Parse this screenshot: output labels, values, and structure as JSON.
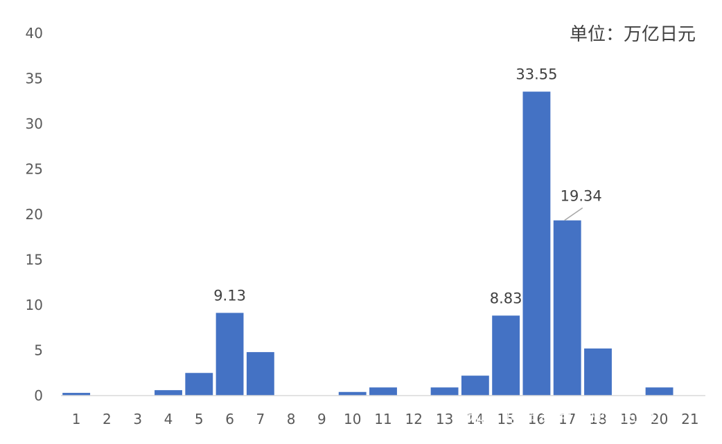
{
  "chart_data": {
    "type": "bar",
    "unit_label": "单位：万亿日元",
    "categories": [
      "1",
      "2",
      "3",
      "4",
      "5",
      "6",
      "7",
      "8",
      "9",
      "10",
      "11",
      "12",
      "13",
      "14",
      "15",
      "16",
      "17",
      "18",
      "19",
      "20",
      "21"
    ],
    "values": [
      0.3,
      0,
      0,
      0.6,
      2.5,
      9.13,
      4.8,
      0,
      0,
      0.4,
      0.9,
      0,
      0.9,
      2.2,
      8.83,
      33.55,
      19.34,
      5.2,
      0,
      0.9,
      0
    ],
    "data_labels": [
      {
        "index": 5,
        "text": "9.13"
      },
      {
        "index": 14,
        "text": "8.83"
      },
      {
        "index": 15,
        "text": "33.55"
      },
      {
        "index": 16,
        "text": "19.34"
      }
    ],
    "ylim": [
      0,
      40
    ],
    "yticks": [
      0,
      5,
      10,
      15,
      20,
      25,
      30,
      35,
      40
    ],
    "grid": false,
    "bar_color": "#4472C4",
    "axis_color": "#D9D9D9"
  },
  "watermark": {
    "text": "知乎 @贸易与产业研究员"
  }
}
